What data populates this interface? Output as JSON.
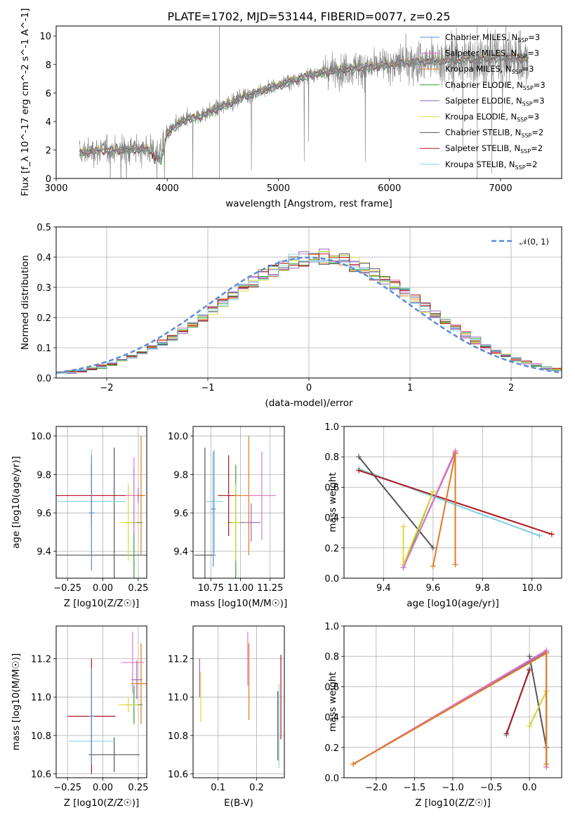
{
  "colors": {
    "chabrier_miles": "#5b8bd8",
    "salpeter_miles": "#e377c2",
    "kroupa_miles": "#e07b1f",
    "chabrier_elodie": "#2ca02c",
    "salpeter_elodie": "#9467bd",
    "kroupa_elodie": "#dbdb39",
    "chabrier_stelib": "#555555",
    "salpeter_stelib": "#b3141e",
    "kroupa_stelib": "#86d7e0",
    "data": "#7f7f7f",
    "normal": "#5b8bd8"
  },
  "title": "PLATE=1702, MJD=53144, FIBERID=0077, z=0.25",
  "chart_data": [
    {
      "id": "spectrum",
      "type": "line",
      "title": "PLATE=1702, MJD=53144, FIBERID=0077, z=0.25",
      "xlabel": "wavelength [Angstrom, rest frame]",
      "ylabel": "Flux [f_λ 10^-17 erg cm^-2 s^-1 A^-1]",
      "xlim": [
        3000,
        7550
      ],
      "ylim": [
        0,
        10.7
      ],
      "xticks": [
        3000,
        4000,
        5000,
        6000,
        7000
      ],
      "yticks": [
        0,
        2,
        4,
        6,
        8,
        10
      ],
      "legend_position": "top-right",
      "legend": [
        {
          "label": "Chabrier MILES, N",
          "sub": "SSP",
          "suffix": "=3",
          "color_key": "chabrier_miles"
        },
        {
          "label": "Salpeter MILES, N",
          "sub": "SSP",
          "suffix": "=3",
          "color_key": "salpeter_miles"
        },
        {
          "label": "Kroupa MILES, N",
          "sub": "SSP",
          "suffix": "=3",
          "color_key": "kroupa_miles"
        },
        {
          "label": "Chabrier ELODIE, N",
          "sub": "SSP",
          "suffix": "=3",
          "color_key": "chabrier_elodie"
        },
        {
          "label": "Salpeter ELODIE, N",
          "sub": "SSP",
          "suffix": "=3",
          "color_key": "salpeter_elodie"
        },
        {
          "label": "Kroupa ELODIE, N",
          "sub": "SSP",
          "suffix": "=3",
          "color_key": "kroupa_elodie"
        },
        {
          "label": "Chabrier STELIB, N",
          "sub": "SSP",
          "suffix": "=2",
          "color_key": "chabrier_stelib"
        },
        {
          "label": "Salpeter STELIB, N",
          "sub": "SSP",
          "suffix": "=2",
          "color_key": "salpeter_stelib"
        },
        {
          "label": "Kroupa STELIB, N",
          "sub": "SSP",
          "suffix": "=2",
          "color_key": "kroupa_stelib"
        }
      ],
      "continuum": [
        [
          3210,
          1.8
        ],
        [
          3400,
          2.0
        ],
        [
          3600,
          2.0
        ],
        [
          3800,
          2.1
        ],
        [
          3950,
          1.8
        ],
        [
          4000,
          3.2
        ],
        [
          4150,
          4.1
        ],
        [
          4300,
          4.4
        ],
        [
          4500,
          5.1
        ],
        [
          4700,
          5.8
        ],
        [
          4900,
          6.3
        ],
        [
          5100,
          6.8
        ],
        [
          5300,
          7.3
        ],
        [
          5600,
          7.7
        ],
        [
          5900,
          7.9
        ],
        [
          6200,
          8.2
        ],
        [
          6500,
          8.3
        ],
        [
          6800,
          8.4
        ],
        [
          7000,
          8.5
        ],
        [
          7250,
          8.4
        ]
      ]
    },
    {
      "id": "residuals",
      "type": "area",
      "xlabel": "(data-model)/error",
      "ylabel": "Normed distribution",
      "xlim": [
        -2.5,
        2.5
      ],
      "ylim": [
        0,
        0.5
      ],
      "xticks": [
        -2,
        -1,
        0,
        1,
        2
      ],
      "yticks": [
        0.0,
        0.1,
        0.2,
        0.3,
        0.4,
        0.5
      ],
      "legend_position": "top-right",
      "normal_label": "𝒩(0, 1)",
      "bin_width": 0.1
    },
    {
      "id": "age_vs_Z",
      "type": "scatter",
      "xlabel": "Z [log10(Z/Z☉)]",
      "ylabel": "age [log10(age/yr)]",
      "xlim": [
        -0.33,
        0.31
      ],
      "ylim": [
        9.26,
        10.05
      ],
      "xticks": [
        -0.25,
        0.0,
        0.25
      ],
      "yticks": [
        9.4,
        9.6,
        9.8,
        10.0
      ],
      "points": [
        {
          "color_key": "chabrier_stelib",
          "x": 0.08,
          "y": 9.38,
          "xerr": 0.45,
          "yerr": 0.56
        },
        {
          "color_key": "kroupa_stelib",
          "x": -0.08,
          "y": 9.66,
          "xerr": 0.24,
          "yerr": 0.27
        },
        {
          "color_key": "salpeter_stelib",
          "x": -0.08,
          "y": 9.69,
          "xerr": 0.32,
          "yerr": 0.16
        },
        {
          "color_key": "chabrier_miles",
          "x": -0.08,
          "y": 9.6,
          "xerr": 0.02,
          "yerr": 0.3
        },
        {
          "color_key": "chabrier_elodie",
          "x": 0.22,
          "y": 9.55,
          "xerr": 0.06,
          "yerr": 0.29
        },
        {
          "color_key": "kroupa_elodie",
          "x": 0.18,
          "y": 9.55,
          "xerr": 0.06,
          "yerr": 0.2
        },
        {
          "color_key": "salpeter_elodie",
          "x": 0.25,
          "y": 9.69,
          "xerr": 0.04,
          "yerr": 0.04
        },
        {
          "color_key": "salpeter_miles",
          "x": 0.22,
          "y": 9.69,
          "xerr": 0.06,
          "yerr": 0.2
        },
        {
          "color_key": "kroupa_miles",
          "x": 0.27,
          "y": 9.69,
          "xerr": 0.03,
          "yerr": 0.31
        }
      ]
    },
    {
      "id": "age_vs_mass",
      "type": "scatter",
      "xlabel": "mass [log10(M/M☉)]",
      "ylabel": "",
      "xlim": [
        10.6,
        11.37
      ],
      "ylim": [
        9.26,
        10.05
      ],
      "xticks": [
        10.75,
        11.0,
        11.25
      ],
      "yticks": [
        9.4,
        9.6,
        9.8,
        10.0
      ],
      "points": [
        {
          "color_key": "chabrier_stelib",
          "x": 10.7,
          "y": 9.38,
          "xerr": 0.09,
          "yerr": 0.56
        },
        {
          "color_key": "kroupa_stelib",
          "x": 10.78,
          "y": 9.66,
          "xerr": 0.07,
          "yerr": 0.27
        },
        {
          "color_key": "salpeter_stelib",
          "x": 10.9,
          "y": 9.69,
          "xerr": 0.09,
          "yerr": 0.21
        },
        {
          "color_key": "chabrier_elodie",
          "x": 10.96,
          "y": 9.55,
          "xerr": 0.06,
          "yerr": 0.3
        },
        {
          "color_key": "kroupa_elodie",
          "x": 10.96,
          "y": 9.55,
          "xerr": 0.04,
          "yerr": 0.2
        },
        {
          "color_key": "salpeter_elodie",
          "x": 11.09,
          "y": 9.55,
          "xerr": 0.08,
          "yerr": 0.1
        },
        {
          "color_key": "kroupa_miles",
          "x": 11.07,
          "y": 9.69,
          "xerr": 0.12,
          "yerr": 0.31
        },
        {
          "color_key": "salpeter_miles",
          "x": 11.18,
          "y": 9.69,
          "xerr": 0.12,
          "yerr": 0.23
        },
        {
          "color_key": "chabrier_miles",
          "x": 10.77,
          "y": 9.62,
          "xerr": 0.02,
          "yerr": 0.3
        }
      ]
    },
    {
      "id": "weight_vs_age",
      "type": "line",
      "xlabel": "age [log10(age/yr)]",
      "ylabel": "mass weight",
      "xlim": [
        9.24,
        10.12
      ],
      "ylim": [
        0.0,
        1.0
      ],
      "xticks": [
        9.4,
        9.6,
        9.8,
        10.0
      ],
      "yticks": [
        0.0,
        0.2,
        0.4,
        0.6,
        0.8,
        1.0
      ],
      "series": [
        {
          "color_key": "chabrier_miles",
          "x": [
            9.3,
            10.03
          ],
          "y": [
            0.72,
            0.28
          ]
        },
        {
          "color_key": "kroupa_stelib",
          "x": [
            9.3,
            10.03
          ],
          "y": [
            0.72,
            0.28
          ]
        },
        {
          "color_key": "salpeter_stelib",
          "x": [
            9.3,
            10.08
          ],
          "y": [
            0.71,
            0.29
          ]
        },
        {
          "color_key": "chabrier_stelib",
          "x": [
            9.3,
            9.6
          ],
          "y": [
            0.8,
            0.2
          ]
        },
        {
          "color_key": "chabrier_elodie",
          "x": [
            9.48,
            9.48,
            9.6,
            9.6
          ],
          "y": [
            0.34,
            0.07,
            0.57,
            0.57
          ]
        },
        {
          "color_key": "kroupa_elodie",
          "x": [
            9.48,
            9.48,
            9.6,
            9.6
          ],
          "y": [
            0.34,
            0.09,
            0.57,
            0.57
          ]
        },
        {
          "color_key": "salpeter_elodie",
          "x": [
            9.48,
            9.69
          ],
          "y": [
            0.07,
            0.83
          ]
        },
        {
          "color_key": "salpeter_miles",
          "x": [
            9.48,
            9.69,
            9.69
          ],
          "y": [
            0.07,
            0.84,
            0.09
          ]
        },
        {
          "color_key": "kroupa_miles",
          "x": [
            9.6,
            9.69,
            9.69
          ],
          "y": [
            0.08,
            0.82,
            0.09
          ]
        }
      ]
    },
    {
      "id": "mass_vs_Z",
      "type": "scatter",
      "xlabel": "Z [log10(Z/Z☉)]",
      "ylabel": "mass [log10(M/M☉)]",
      "xlim": [
        -0.33,
        0.31
      ],
      "ylim": [
        10.58,
        11.37
      ],
      "xticks": [
        -0.25,
        0.0,
        0.25
      ],
      "yticks": [
        10.6,
        10.8,
        11.0,
        11.2
      ],
      "points": [
        {
          "color_key": "chabrier_stelib",
          "x": 0.08,
          "y": 10.7,
          "xerr": 0.18,
          "yerr": 0.09
        },
        {
          "color_key": "kroupa_stelib",
          "x": -0.08,
          "y": 10.77,
          "xerr": 0.16,
          "yerr": 0.11
        },
        {
          "color_key": "salpeter_stelib",
          "x": -0.08,
          "y": 10.9,
          "xerr": 0.17,
          "yerr": 0.3
        },
        {
          "color_key": "chabrier_miles",
          "x": -0.08,
          "y": 10.9,
          "xerr": 0.02,
          "yerr": 0.25
        },
        {
          "color_key": "chabrier_elodie",
          "x": 0.22,
          "y": 10.96,
          "xerr": 0.06,
          "yerr": 0.1
        },
        {
          "color_key": "kroupa_elodie",
          "x": 0.18,
          "y": 10.96,
          "xerr": 0.07,
          "yerr": 0.04
        },
        {
          "color_key": "salpeter_elodie",
          "x": 0.24,
          "y": 11.09,
          "xerr": 0.04,
          "yerr": 0.1
        },
        {
          "color_key": "salpeter_miles",
          "x": 0.21,
          "y": 11.18,
          "xerr": 0.08,
          "yerr": 0.16
        },
        {
          "color_key": "kroupa_miles",
          "x": 0.27,
          "y": 11.07,
          "xerr": 0.07,
          "yerr": 0.21
        }
      ]
    },
    {
      "id": "mass_vs_ebv",
      "type": "scatter",
      "xlabel": "E(B-V)",
      "ylabel": "",
      "xlim": [
        0.035,
        0.272
      ],
      "ylim": [
        10.58,
        11.37
      ],
      "xticks": [
        0.1,
        0.2
      ],
      "yticks": [
        10.6,
        10.8,
        11.0,
        11.2
      ],
      "points": [
        {
          "color_key": "salpeter_elodie",
          "x": 0.052,
          "y": 11.1,
          "xerr": 0.0,
          "yerr": 0.1
        },
        {
          "color_key": "kroupa_elodie",
          "x": 0.055,
          "y": 11.0,
          "xerr": 0.0,
          "yerr": 0.13
        },
        {
          "color_key": "salpeter_miles",
          "x": 0.177,
          "y": 11.2,
          "xerr": 0.0,
          "yerr": 0.14
        },
        {
          "color_key": "kroupa_miles",
          "x": 0.18,
          "y": 11.08,
          "xerr": 0.0,
          "yerr": 0.2
        },
        {
          "color_key": "chabrier_stelib",
          "x": 0.255,
          "y": 10.85,
          "xerr": 0.0,
          "yerr": 0.18
        },
        {
          "color_key": "kroupa_stelib",
          "x": 0.258,
          "y": 10.85,
          "xerr": 0.0,
          "yerr": 0.22
        },
        {
          "color_key": "salpeter_stelib",
          "x": 0.263,
          "y": 11.0,
          "xerr": 0.0,
          "yerr": 0.22
        }
      ]
    },
    {
      "id": "weight_vs_Z",
      "type": "line",
      "xlabel": "Z [log10(Z/Z☉)]",
      "ylabel": "mass weight",
      "xlim": [
        -2.42,
        0.42
      ],
      "ylim": [
        0.0,
        1.0
      ],
      "xticks": [
        -2.0,
        -1.5,
        -1.0,
        -0.5,
        0.0
      ],
      "yticks": [
        0.0,
        0.2,
        0.4,
        0.6,
        0.8,
        1.0
      ],
      "series": [
        {
          "color_key": "chabrier_miles",
          "x": [
            -0.3,
            0.0
          ],
          "y": [
            0.28,
            0.72
          ]
        },
        {
          "color_key": "kroupa_stelib",
          "x": [
            -0.3,
            0.0
          ],
          "y": [
            0.28,
            0.72
          ]
        },
        {
          "color_key": "salpeter_stelib",
          "x": [
            -0.3,
            0.0
          ],
          "y": [
            0.29,
            0.71
          ]
        },
        {
          "color_key": "chabrier_stelib",
          "x": [
            0.0,
            0.22
          ],
          "y": [
            0.8,
            0.2
          ]
        },
        {
          "color_key": "chabrier_elodie",
          "x": [
            0.0,
            0.22,
            0.22
          ],
          "y": [
            0.34,
            0.57,
            0.07
          ]
        },
        {
          "color_key": "kroupa_elodie",
          "x": [
            0.0,
            0.22,
            0.22
          ],
          "y": [
            0.34,
            0.57,
            0.09
          ]
        },
        {
          "color_key": "salpeter_elodie",
          "x": [
            -2.3,
            0.22
          ],
          "y": [
            0.09,
            0.83
          ]
        },
        {
          "color_key": "salpeter_miles",
          "x": [
            -2.3,
            0.22,
            0.22
          ],
          "y": [
            0.09,
            0.84,
            0.07
          ]
        },
        {
          "color_key": "kroupa_miles",
          "x": [
            -2.3,
            0.22,
            0.22
          ],
          "y": [
            0.09,
            0.82,
            0.09
          ]
        }
      ]
    }
  ]
}
